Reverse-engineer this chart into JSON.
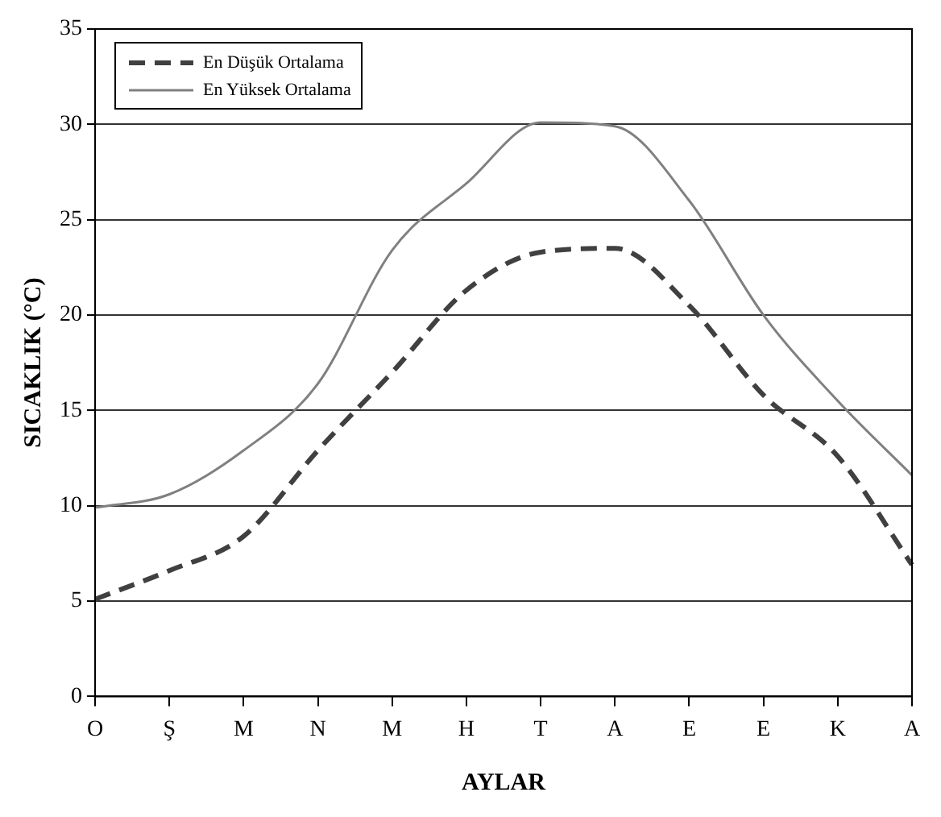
{
  "chart_data": {
    "type": "line",
    "xlabel": "AYLAR",
    "ylabel": "SICAKLIK (°C)",
    "categories": [
      "O",
      "Ş",
      "M",
      "N",
      "M",
      "H",
      "T",
      "A",
      "E",
      "E",
      "K",
      "A"
    ],
    "ylim": [
      0,
      35
    ],
    "yticks": [
      0,
      5,
      10,
      15,
      20,
      25,
      30,
      35
    ],
    "grid": "y",
    "legend": "top left",
    "marker": "none",
    "series": [
      {
        "name": "En Düşük Ortalama",
        "color": "#404040",
        "line_style": "dashed",
        "values": [
          5.1,
          6.6,
          8.4,
          12.9,
          17.0,
          21.3,
          23.3,
          23.5,
          20.5,
          15.8,
          12.6,
          6.9
        ]
      },
      {
        "name": "En Yüksek Ortalama",
        "color": "#808080",
        "line_style": "solid",
        "values": [
          9.9,
          10.6,
          12.9,
          16.4,
          23.4,
          26.9,
          30.1,
          29.9,
          26.0,
          20.0,
          15.5,
          11.6
        ]
      }
    ]
  }
}
